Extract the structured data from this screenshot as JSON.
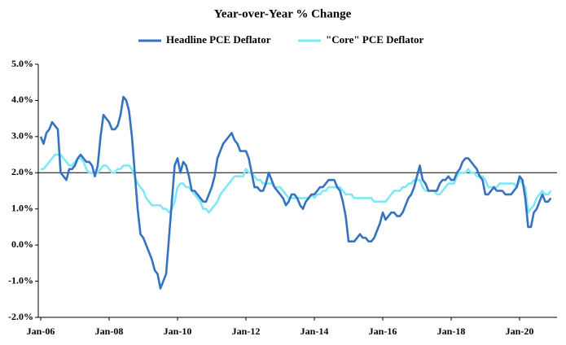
{
  "chart_data": {
    "type": "line",
    "title": "Year-over-Year % Change",
    "categories": [
      "Jan-06",
      null,
      null,
      null,
      null,
      null,
      null,
      null,
      null,
      null,
      null,
      null,
      null,
      null,
      null,
      null,
      null,
      null,
      null,
      null,
      null,
      null,
      null,
      null,
      "Jan-08",
      null,
      null,
      null,
      null,
      null,
      null,
      null,
      null,
      null,
      null,
      null,
      null,
      null,
      null,
      null,
      null,
      null,
      null,
      null,
      null,
      null,
      null,
      null,
      "Jan-10",
      null,
      null,
      null,
      null,
      null,
      null,
      null,
      null,
      null,
      null,
      null,
      null,
      null,
      null,
      null,
      null,
      null,
      null,
      null,
      null,
      null,
      null,
      null,
      "Jan-12",
      null,
      null,
      null,
      null,
      null,
      null,
      null,
      null,
      null,
      null,
      null,
      null,
      null,
      null,
      null,
      null,
      null,
      null,
      null,
      null,
      null,
      null,
      null,
      "Jan-14",
      null,
      null,
      null,
      null,
      null,
      null,
      null,
      null,
      null,
      null,
      null,
      null,
      null,
      null,
      null,
      null,
      null,
      null,
      null,
      null,
      null,
      null,
      null,
      "Jan-16",
      null,
      null,
      null,
      null,
      null,
      null,
      null,
      null,
      null,
      null,
      null,
      null,
      null,
      null,
      null,
      null,
      null,
      null,
      null,
      null,
      null,
      null,
      null,
      "Jan-18",
      null,
      null,
      null,
      null,
      null,
      null,
      null,
      null,
      null,
      null,
      null,
      null,
      null,
      null,
      null,
      null,
      null,
      null,
      null,
      null,
      null,
      null,
      null,
      "Jan-20",
      null,
      null,
      null,
      null,
      null,
      null,
      null,
      null,
      null,
      null,
      null
    ],
    "series": [
      {
        "name": "Headline PCE Deflator",
        "color": "#3572c0",
        "values": [
          3.0,
          2.8,
          3.1,
          3.2,
          3.4,
          3.3,
          3.2,
          2.0,
          1.9,
          1.8,
          2.1,
          2.1,
          2.2,
          2.4,
          2.5,
          2.4,
          2.3,
          2.3,
          2.2,
          1.9,
          2.2,
          3.0,
          3.6,
          3.5,
          3.4,
          3.2,
          3.2,
          3.3,
          3.6,
          4.1,
          4.0,
          3.7,
          3.0,
          2.0,
          1.0,
          0.3,
          0.2,
          0.0,
          -0.2,
          -0.4,
          -0.7,
          -0.8,
          -1.2,
          -1.0,
          -0.8,
          0.2,
          1.2,
          2.2,
          2.4,
          2.0,
          2.3,
          2.2,
          1.9,
          1.5,
          1.5,
          1.4,
          1.3,
          1.2,
          1.2,
          1.4,
          1.6,
          1.9,
          2.4,
          2.6,
          2.8,
          2.9,
          3.0,
          3.1,
          2.9,
          2.8,
          2.6,
          2.6,
          2.6,
          2.4,
          2.0,
          1.6,
          1.6,
          1.5,
          1.5,
          1.7,
          2.0,
          1.8,
          1.6,
          1.5,
          1.4,
          1.3,
          1.1,
          1.2,
          1.4,
          1.4,
          1.3,
          1.1,
          1.0,
          1.2,
          1.3,
          1.4,
          1.4,
          1.5,
          1.6,
          1.6,
          1.7,
          1.8,
          1.8,
          1.8,
          1.6,
          1.5,
          1.2,
          0.8,
          0.1,
          0.1,
          0.1,
          0.2,
          0.3,
          0.2,
          0.2,
          0.1,
          0.1,
          0.2,
          0.4,
          0.6,
          0.9,
          0.7,
          0.8,
          0.9,
          0.9,
          0.8,
          0.8,
          0.9,
          1.1,
          1.3,
          1.4,
          1.6,
          1.9,
          2.2,
          1.8,
          1.7,
          1.5,
          1.5,
          1.5,
          1.5,
          1.7,
          1.8,
          1.8,
          1.9,
          1.8,
          1.8,
          2.0,
          2.1,
          2.3,
          2.4,
          2.4,
          2.3,
          2.2,
          2.1,
          1.9,
          1.8,
          1.4,
          1.4,
          1.5,
          1.6,
          1.5,
          1.5,
          1.5,
          1.4,
          1.4,
          1.4,
          1.5,
          1.6,
          1.9,
          1.8,
          1.3,
          0.5,
          0.5,
          0.9,
          1.0,
          1.2,
          1.4,
          1.2,
          1.2,
          1.3
        ]
      },
      {
        "name": "\"Core\" PCE Deflator",
        "color": "#7fe8f5",
        "values": [
          2.1,
          2.1,
          2.2,
          2.3,
          2.4,
          2.5,
          2.5,
          2.5,
          2.4,
          2.3,
          2.2,
          2.2,
          2.3,
          2.4,
          2.4,
          2.3,
          2.1,
          2.0,
          2.0,
          2.0,
          2.0,
          2.1,
          2.2,
          2.2,
          2.1,
          2.0,
          2.0,
          2.1,
          2.1,
          2.2,
          2.2,
          2.2,
          2.1,
          1.9,
          1.7,
          1.6,
          1.5,
          1.3,
          1.2,
          1.1,
          1.1,
          1.1,
          1.1,
          1.0,
          1.0,
          0.9,
          1.0,
          1.2,
          1.6,
          1.7,
          1.7,
          1.6,
          1.6,
          1.5,
          1.4,
          1.3,
          1.2,
          1.0,
          1.0,
          0.9,
          1.0,
          1.1,
          1.2,
          1.4,
          1.5,
          1.6,
          1.7,
          1.8,
          1.9,
          1.9,
          1.9,
          1.9,
          2.1,
          2.0,
          2.0,
          1.9,
          1.8,
          1.8,
          1.7,
          1.7,
          1.7,
          1.7,
          1.6,
          1.6,
          1.6,
          1.5,
          1.4,
          1.3,
          1.3,
          1.3,
          1.3,
          1.3,
          1.3,
          1.3,
          1.3,
          1.4,
          1.3,
          1.4,
          1.4,
          1.5,
          1.5,
          1.6,
          1.6,
          1.6,
          1.6,
          1.6,
          1.5,
          1.4,
          1.4,
          1.4,
          1.3,
          1.3,
          1.3,
          1.3,
          1.3,
          1.3,
          1.3,
          1.2,
          1.2,
          1.2,
          1.2,
          1.2,
          1.3,
          1.4,
          1.5,
          1.5,
          1.5,
          1.6,
          1.6,
          1.7,
          1.7,
          1.8,
          1.8,
          1.8,
          1.6,
          1.5,
          1.5,
          1.5,
          1.5,
          1.4,
          1.4,
          1.5,
          1.6,
          1.7,
          1.7,
          1.7,
          1.9,
          2.0,
          2.0,
          2.0,
          2.1,
          2.0,
          2.0,
          1.9,
          1.9,
          1.9,
          1.8,
          1.6,
          1.6,
          1.6,
          1.6,
          1.7,
          1.7,
          1.7,
          1.7,
          1.7,
          1.7,
          1.6,
          1.8,
          1.7,
          1.6,
          0.9,
          1.0,
          1.1,
          1.3,
          1.4,
          1.5,
          1.4,
          1.4,
          1.5
        ]
      }
    ],
    "ylim": [
      -2,
      5
    ],
    "yticks": [
      {
        "value": -2,
        "label": "-2.0%"
      },
      {
        "value": -1,
        "label": "-1.0%"
      },
      {
        "value": 0,
        "label": "0.0%"
      },
      {
        "value": 1,
        "label": "1.0%"
      },
      {
        "value": 2,
        "label": "2.0%"
      },
      {
        "value": 3,
        "label": "3.0%"
      },
      {
        "value": 4,
        "label": "4.0%"
      },
      {
        "value": 5,
        "label": "5.0%"
      }
    ],
    "reference_line": 2,
    "legend": "top",
    "grid": false
  }
}
